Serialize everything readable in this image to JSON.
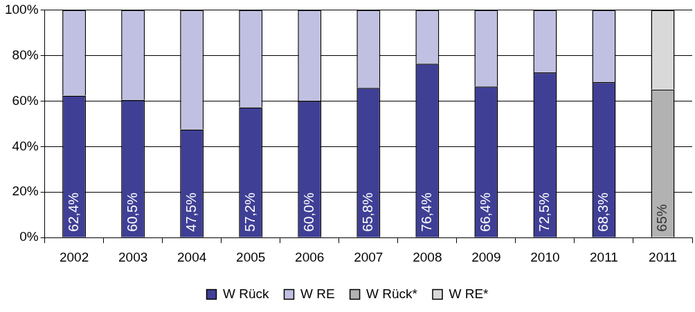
{
  "chart_data": {
    "type": "bar",
    "stacked": true,
    "categories": [
      "2002",
      "2003",
      "2004",
      "2005",
      "2006",
      "2007",
      "2008",
      "2009",
      "2010",
      "2011",
      "2011"
    ],
    "series": [
      {
        "name": "W Rück",
        "color": "#3f3f96",
        "values": [
          62.4,
          60.5,
          47.5,
          57.2,
          60.0,
          65.8,
          76.4,
          66.4,
          72.5,
          68.3,
          null
        ],
        "value_labels": [
          "62,4%",
          "60,5%",
          "47,5%",
          "57,2%",
          "60,0%",
          "65,8%",
          "76,4%",
          "66,4%",
          "72,5%",
          "68,3%",
          null
        ]
      },
      {
        "name": "W RE",
        "color": "#c0c0e2",
        "values": [
          37.6,
          39.5,
          52.5,
          42.8,
          40.0,
          34.2,
          23.6,
          33.6,
          27.5,
          31.7,
          null
        ]
      },
      {
        "name": "W Rück*",
        "color": "#b2b2b2",
        "values": [
          null,
          null,
          null,
          null,
          null,
          null,
          null,
          null,
          null,
          null,
          65
        ],
        "value_labels": [
          null,
          null,
          null,
          null,
          null,
          null,
          null,
          null,
          null,
          null,
          "65%"
        ]
      },
      {
        "name": "W RE*",
        "color": "#d9d9d9",
        "values": [
          null,
          null,
          null,
          null,
          null,
          null,
          null,
          null,
          null,
          null,
          35
        ]
      }
    ],
    "ylim": [
      0,
      100
    ],
    "yticks": [
      {
        "value": 0,
        "label": "0%"
      },
      {
        "value": 20,
        "label": "20%"
      },
      {
        "value": 40,
        "label": "40%"
      },
      {
        "value": 60,
        "label": "60%"
      },
      {
        "value": 80,
        "label": "80%"
      },
      {
        "value": 100,
        "label": "100%"
      }
    ],
    "grid": "y",
    "legend": "bottom"
  }
}
